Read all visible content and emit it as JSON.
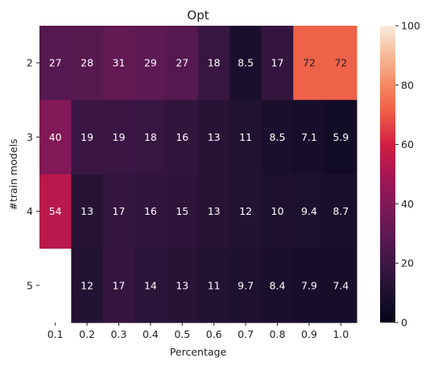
{
  "chart_data": {
    "type": "heatmap",
    "title": "Opt",
    "xlabel": "Percentage",
    "ylabel": "#train models",
    "x_categories": [
      "0.1",
      "0.2",
      "0.3",
      "0.4",
      "0.5",
      "0.6",
      "0.7",
      "0.8",
      "0.9",
      "1.0"
    ],
    "y_categories": [
      "2",
      "3",
      "4",
      "5"
    ],
    "values": [
      [
        27,
        28,
        31,
        29,
        27,
        18,
        8.5,
        17,
        72,
        72
      ],
      [
        40,
        19,
        19,
        18,
        16,
        13,
        11,
        8.5,
        7.1,
        5.9
      ],
      [
        54,
        13,
        17,
        16,
        15,
        13,
        12,
        10,
        9.4,
        8.7
      ],
      [
        null,
        12,
        17,
        14,
        13,
        11,
        9.7,
        8.4,
        7.9,
        7.4
      ]
    ],
    "colorbar": {
      "colormap": "rocket",
      "range": [
        0,
        100
      ],
      "ticks": [
        0,
        20,
        40,
        60,
        80,
        100
      ]
    }
  }
}
